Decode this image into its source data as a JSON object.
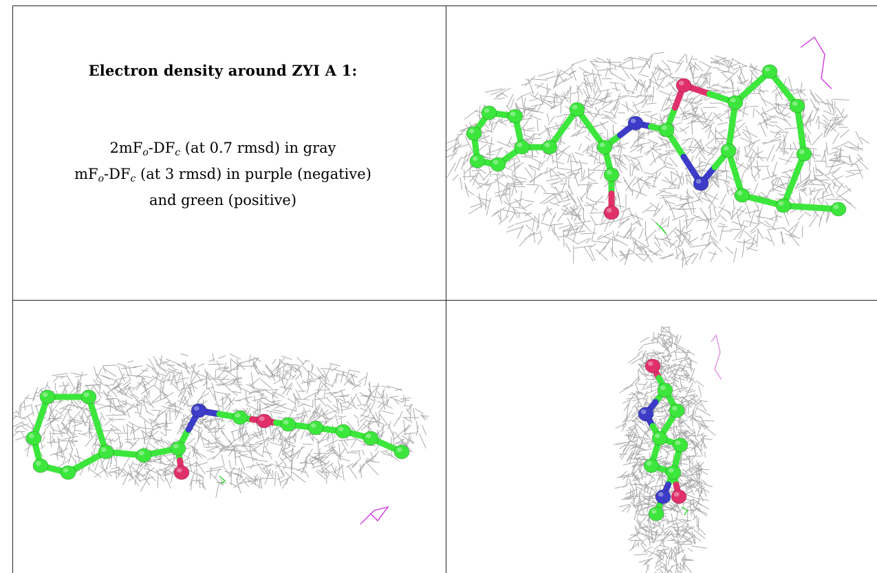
{
  "caption": {
    "title": "Electron density around ZYI A 1:",
    "line1": {
      "pre": "2mF",
      "sub1": "o",
      "mid": "-DF",
      "sub2": "c",
      "post": " (at 0.7 rmsd) in gray"
    },
    "line2": {
      "pre": "mF",
      "sub1": "o",
      "mid": "-DF",
      "sub2": "c",
      "post": " (at 3 rmsd) in purple (negative)"
    },
    "line3": "and green (positive)"
  },
  "colors": {
    "mesh": "#9a9a9a",
    "carbon": "#3ce63c",
    "nitrogen": "#3c3cc8",
    "oxygen": "#e0306a",
    "negative_density": "#d038e0",
    "positive_density": "#28d828",
    "border": "#222222"
  },
  "panels": [
    {
      "view": "front"
    },
    {
      "view": "side"
    },
    {
      "view": "end-on"
    }
  ]
}
